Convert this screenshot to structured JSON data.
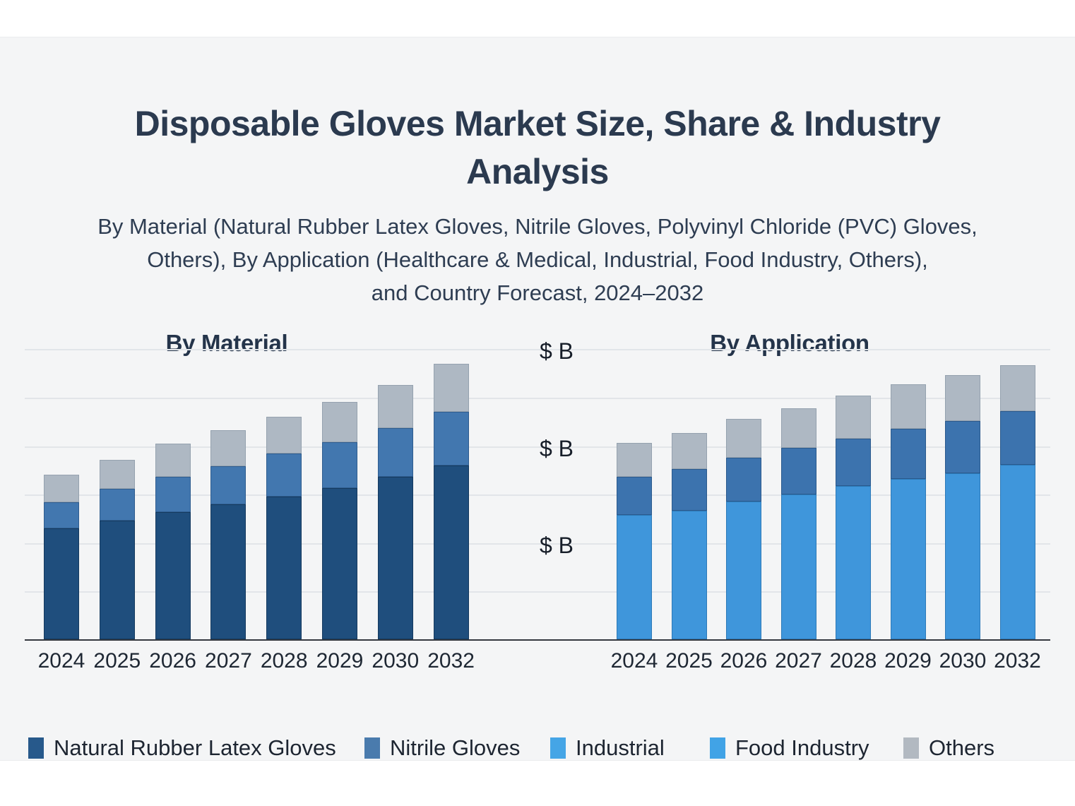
{
  "header": {
    "title_lines": [
      "Disposable Gloves Market Size, Share & Industry",
      "Analysis"
    ],
    "subtitle_lines": [
      "By Material (Natural Rubber Latex Gloves, Nitrile Gloves, Polyvinyl Chloride (PVC) Gloves,",
      "Others), By Application (Healthcare & Medical, Industrial, Food Industry, Others),",
      "and Country Forecast, 2024–2032"
    ]
  },
  "colors": {
    "page_background": "#ffffff",
    "card_background": "#f4f5f6",
    "title_text": "#2b3a4f",
    "gridline": "#e2e5e9",
    "axis_line": "#34383f",
    "tick_text": "#1e2733"
  },
  "y_axis": {
    "tick_labels": [
      "$ B",
      "$ B",
      "$ B"
    ],
    "note": "currency axis shown only as $ B placeholders, no numeric ticks visible"
  },
  "chart_data": [
    {
      "type": "bar",
      "stacked": true,
      "title": "By Material",
      "categories": [
        "2024",
        "2025",
        "2026",
        "2027",
        "2028",
        "2029",
        "2030",
        "2032"
      ],
      "series": [
        {
          "name": "Natural Rubber Latex Gloves",
          "color": "#1f4e7d",
          "border_color": "#153a5f",
          "values": [
            40.3,
            43.1,
            46.2,
            49.0,
            51.8,
            54.9,
            59.0,
            63.1
          ]
        },
        {
          "name": "Nitrile Gloves",
          "color": "#4277af",
          "border_color": "#2f5d8f",
          "values": [
            9.5,
            11.5,
            12.8,
            13.8,
            15.6,
            16.7,
            17.7,
            19.5
          ]
        },
        {
          "name": "Others",
          "color": "#aeb8c3",
          "border_color": "#95a2af",
          "values": [
            10.0,
            10.5,
            12.0,
            13.1,
            13.3,
            14.6,
            15.6,
            17.4
          ]
        }
      ],
      "xlabel": "",
      "ylabel": "$ B",
      "ylim": [
        0,
        105
      ],
      "unit": "relative index (tallest 2032 stacked bar = 100); y-axis is unlabeled in source",
      "gridlines": true,
      "legend_position": "bottom"
    },
    {
      "type": "bar",
      "stacked": true,
      "title": "By Application",
      "categories": [
        "2024",
        "2025",
        "2026",
        "2027",
        "2028",
        "2029",
        "2030",
        "2032"
      ],
      "series": [
        {
          "name": "Industrial",
          "color": "#3f96db",
          "border_color": "#2d7ab8",
          "values": [
            45.1,
            46.7,
            50.0,
            52.6,
            55.6,
            58.2,
            60.3,
            63.3
          ]
        },
        {
          "name": "Food Industry",
          "color": "#3c73ae",
          "border_color": "#2b5a8d",
          "values": [
            13.9,
            15.1,
            15.9,
            16.9,
            17.2,
            18.2,
            19.0,
            19.5
          ]
        },
        {
          "name": "Others",
          "color": "#aeb8c3",
          "border_color": "#95a2af",
          "values": [
            12.3,
            13.1,
            14.1,
            14.4,
            15.6,
            16.2,
            16.7,
            16.7
          ]
        }
      ],
      "xlabel": "",
      "ylabel": "$ B",
      "ylim": [
        0,
        105
      ],
      "unit": "relative index (same pixel scale as By Material chart)",
      "gridlines": true,
      "legend_position": "bottom"
    }
  ],
  "legend": {
    "items": [
      {
        "label": "Natural Rubber Latex Gloves",
        "color": "#27598b"
      },
      {
        "label": "Nitrile Gloves",
        "color": "#4a7bad"
      },
      {
        "label": "Industrial",
        "color": "#45a5e6"
      },
      {
        "label": "Food Industry",
        "color": "#41a3e6"
      },
      {
        "label": "Others",
        "color": "#b2b9c1"
      }
    ]
  }
}
